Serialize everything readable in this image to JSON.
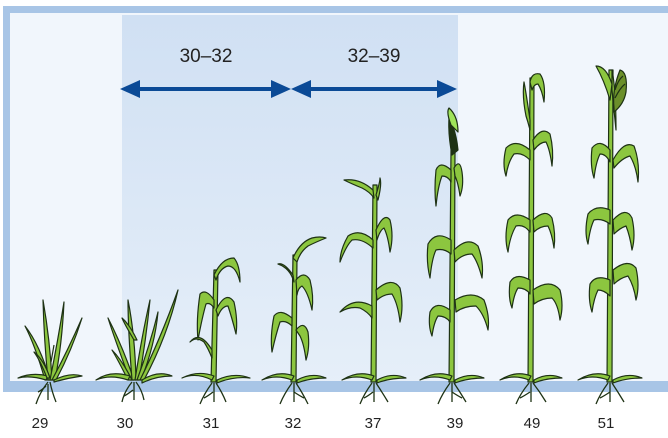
{
  "diagram": {
    "arrows": [
      {
        "label": "30–32"
      },
      {
        "label": "32–39"
      }
    ],
    "stages": [
      "29",
      "30",
      "31",
      "32",
      "37",
      "39",
      "49",
      "51"
    ],
    "colors": {
      "frame": "#a8c5e6",
      "panel_light": "#f1f6fc",
      "panel_band": "#d4e3f4",
      "ground": "#a8c5e6",
      "arrow": "#0b4a96",
      "leaf": "#8cc63f",
      "outline": "#1e3214",
      "head": "#6b8f2a",
      "flag": "#9fe35a"
    }
  }
}
